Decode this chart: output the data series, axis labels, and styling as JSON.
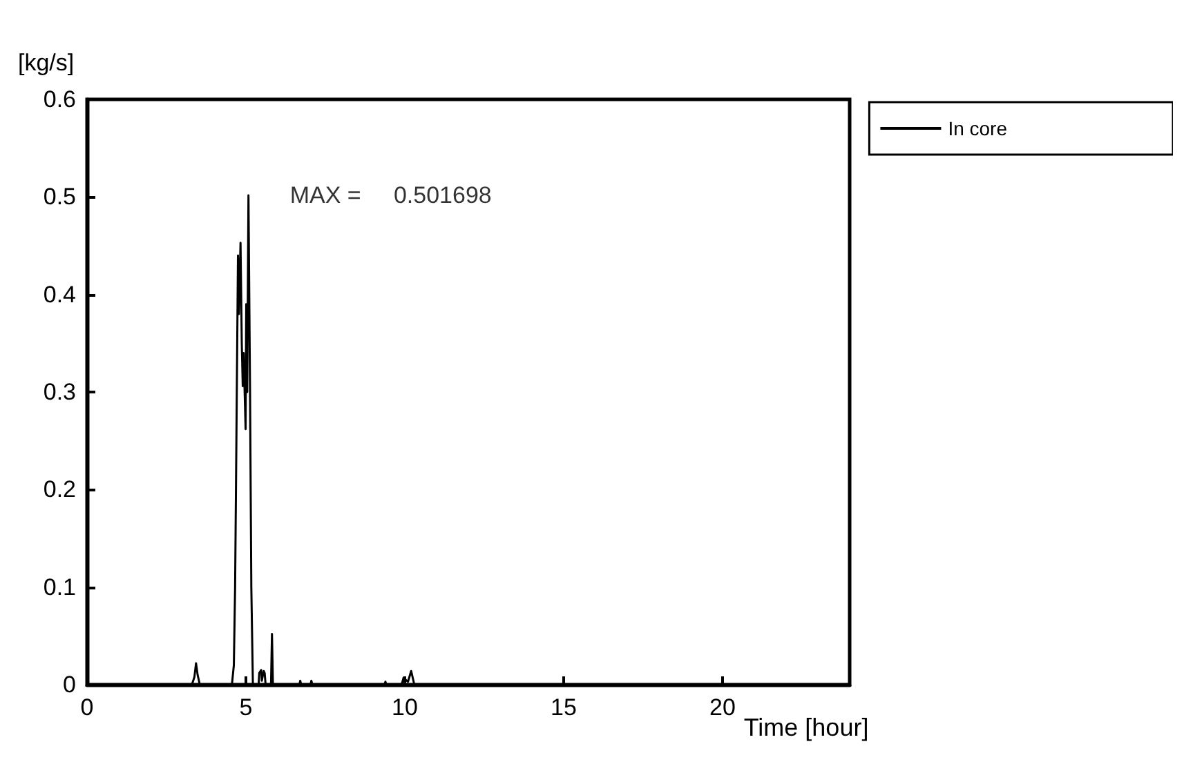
{
  "chart_data": {
    "type": "line",
    "xlabel": "Time [hour]",
    "ylabel": "[kg/s]",
    "xlim": [
      0,
      24
    ],
    "xticks": [
      0,
      5,
      10,
      15,
      20
    ],
    "ylim": [
      0,
      0.6
    ],
    "yticks": [
      0,
      0.1,
      0.2,
      0.3,
      0.4,
      0.5,
      0.6
    ],
    "grid": false,
    "legend": "top right",
    "marker": "none",
    "line_style": "solid",
    "annotations": [
      {
        "text": "MAX =     0.501698",
        "x": 5.08,
        "y": 0.501698
      }
    ],
    "series": [
      {
        "name": "In core",
        "color": "#000000",
        "x": [
          0,
          3.3,
          3.38,
          3.43,
          3.48,
          3.55,
          4.5,
          4.56,
          4.62,
          4.66,
          4.7,
          4.75,
          4.78,
          4.83,
          4.87,
          4.9,
          4.93,
          4.96,
          4.99,
          5.01,
          5.04,
          5.08,
          5.13,
          5.17,
          5.22,
          5.3,
          5.4,
          5.42,
          5.48,
          5.5,
          5.56,
          5.59,
          5.62,
          5.79,
          5.82,
          5.85,
          6.68,
          6.71,
          6.74,
          7.03,
          7.06,
          7.09,
          9.36,
          9.39,
          9.42,
          9.9,
          9.96,
          10.1,
          10.2,
          10.3,
          24
        ],
        "values": [
          0,
          0,
          0.008,
          0.022,
          0.01,
          0,
          0,
          0,
          0.02,
          0.1,
          0.25,
          0.44,
          0.38,
          0.453,
          0.35,
          0.306,
          0.34,
          0.3,
          0.262,
          0.39,
          0.3,
          0.501698,
          0.3,
          0.1,
          0,
          0,
          0,
          0.012,
          0.015,
          0.004,
          0.014,
          0.012,
          0,
          0,
          0.052,
          0,
          0,
          0.004,
          0,
          0,
          0.004,
          0,
          0,
          0.003,
          0,
          0,
          0.007,
          0.003,
          0.014,
          0,
          0
        ]
      }
    ]
  }
}
